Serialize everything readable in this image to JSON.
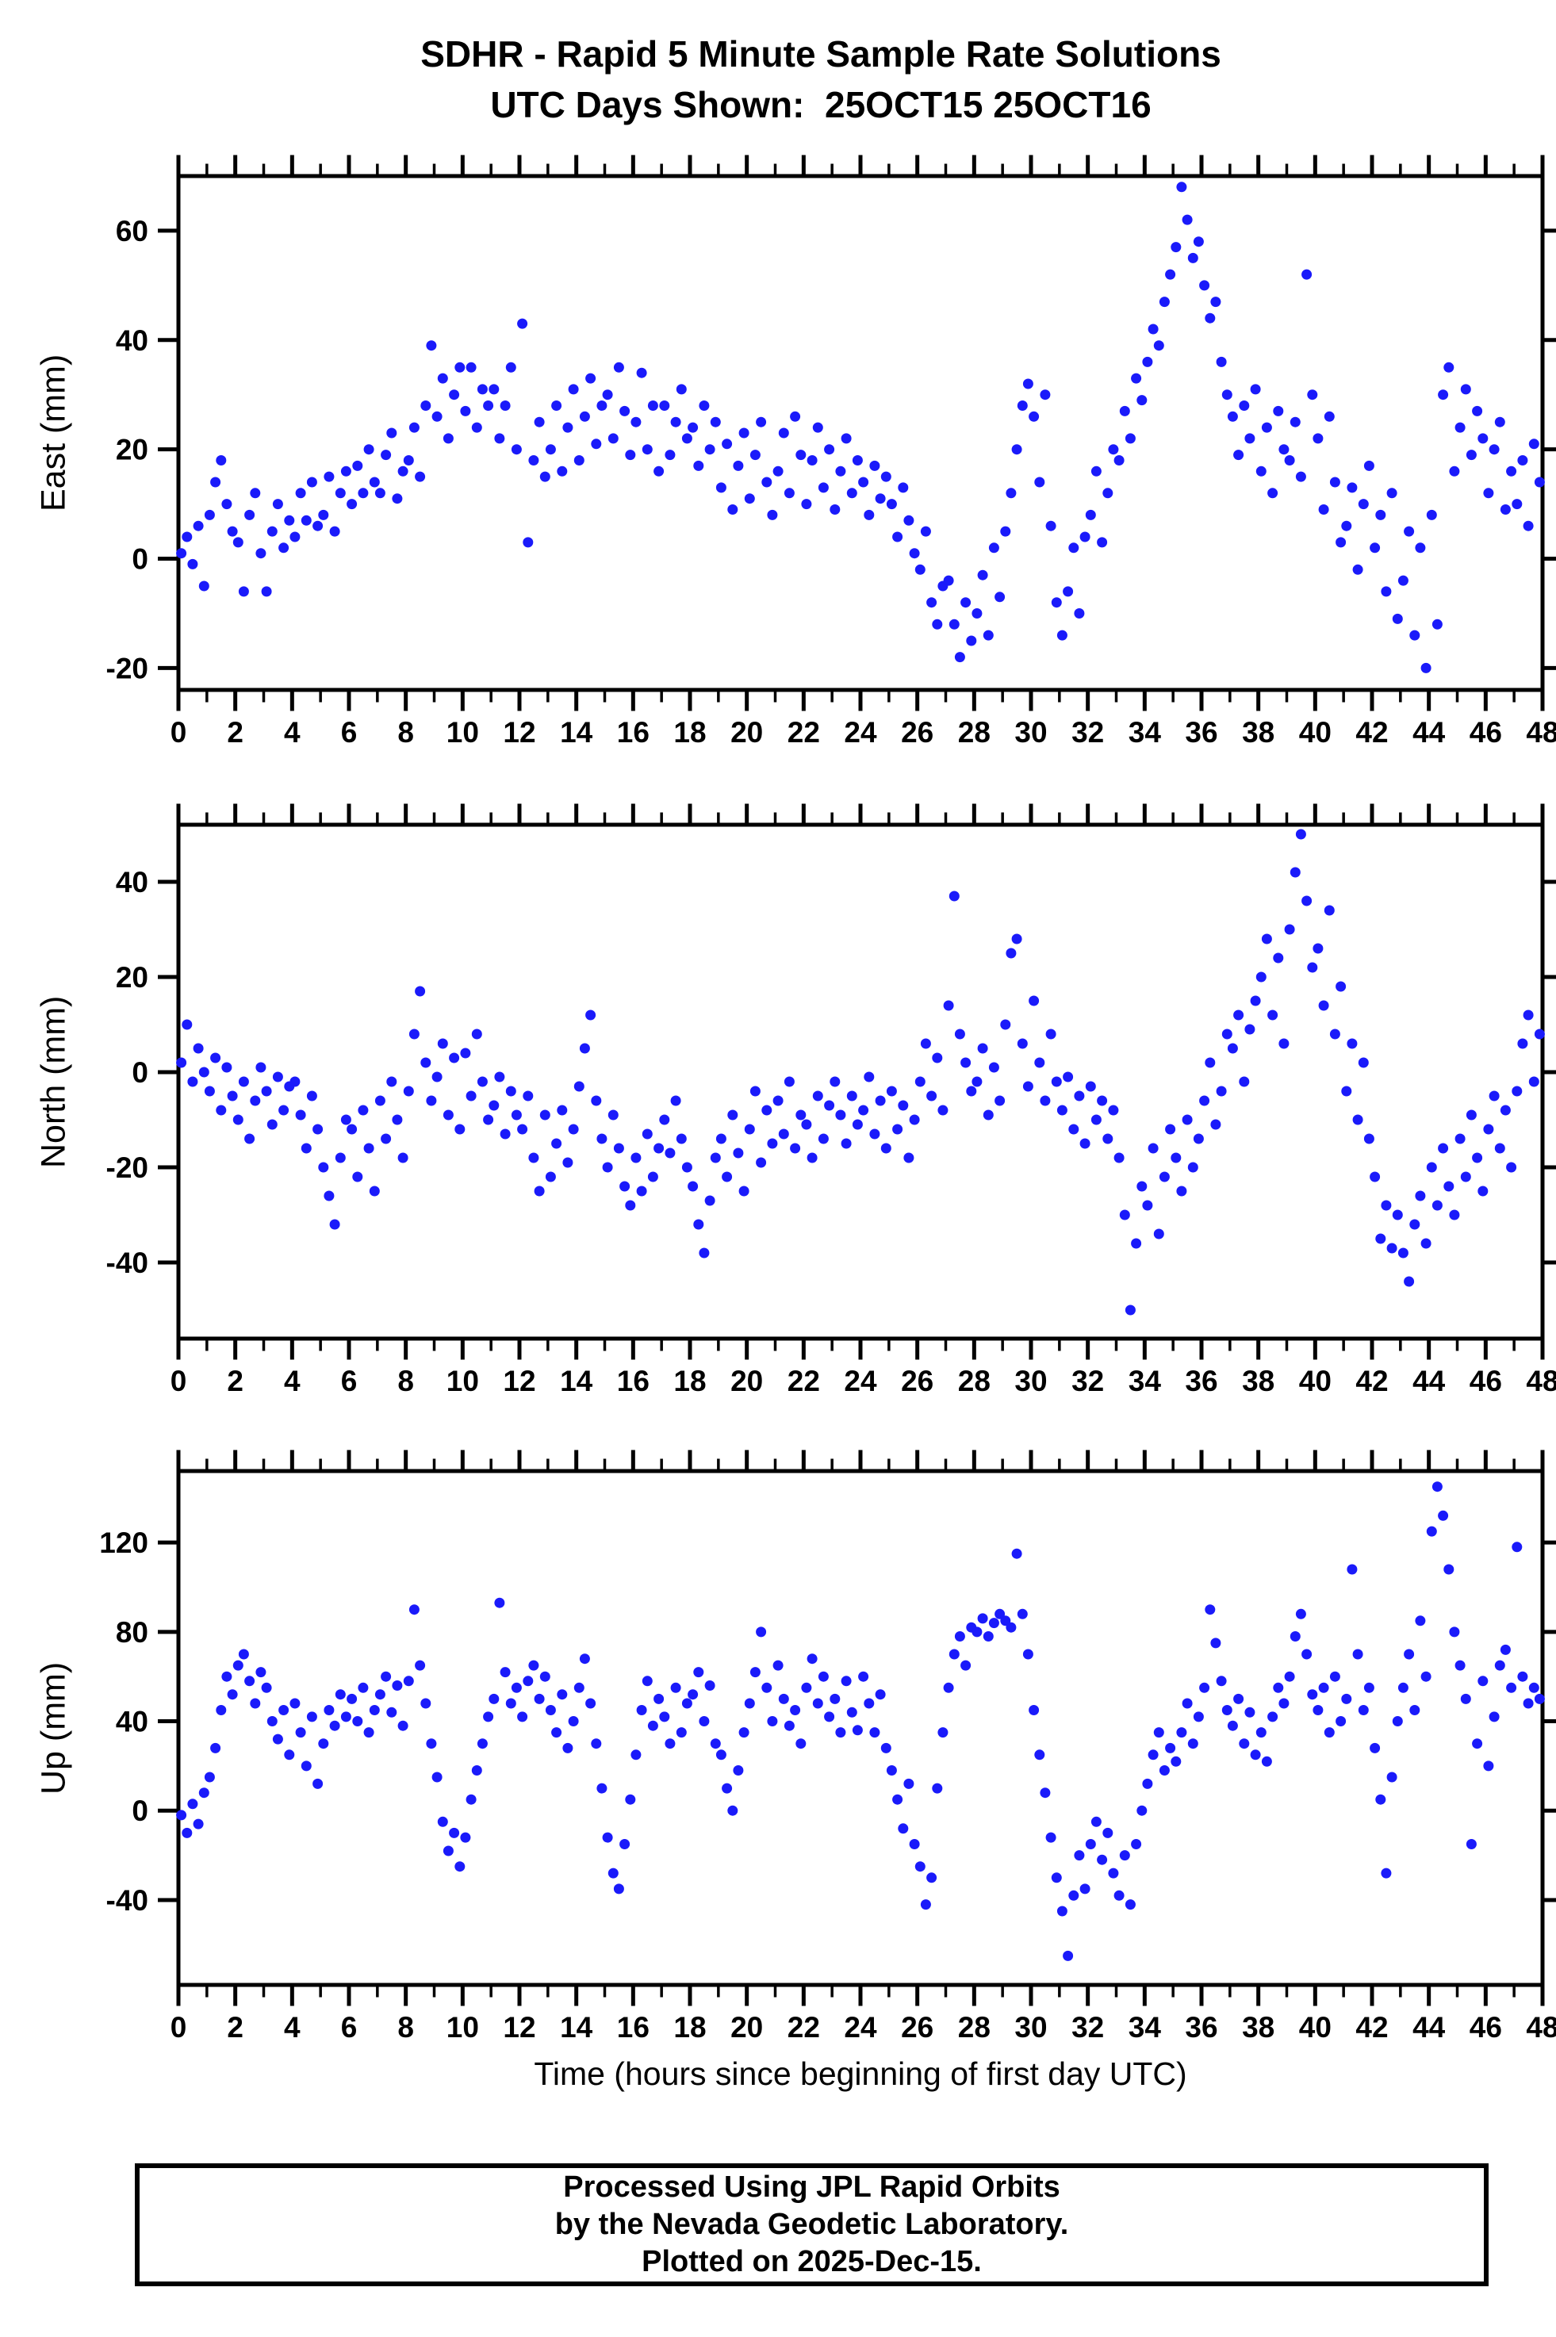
{
  "title": {
    "line1": "SDHR - Rapid 5 Minute Sample Rate Solutions",
    "line2": "UTC Days Shown:  25OCT15 25OCT16"
  },
  "xaxis": {
    "label": "Time (hours since beginning of first day UTC)",
    "xlim": [
      0,
      48
    ],
    "xticks": [
      0,
      2,
      4,
      6,
      8,
      10,
      12,
      14,
      16,
      18,
      20,
      22,
      24,
      26,
      28,
      30,
      32,
      34,
      36,
      38,
      40,
      42,
      44,
      46,
      48
    ],
    "minor_step": 1,
    "grid": false
  },
  "style": {
    "dot_color": "#1a1afa",
    "frame_color": "#000000"
  },
  "footer": {
    "line1": "Processed Using JPL Rapid Orbits",
    "line2": "by the Nevada Geodetic Laboratory.",
    "line3": "Plotted on 2025-Dec-15."
  },
  "chart_data": [
    {
      "type": "scatter",
      "name": "east",
      "ylabel": "East (mm)",
      "yticks": [
        -20,
        0,
        20,
        40,
        60
      ],
      "ylim": [
        -24,
        70
      ],
      "legend": "none",
      "t_start": 0.1,
      "t_step": 0.2,
      "values": [
        1,
        4,
        -1,
        6,
        -5,
        8,
        14,
        18,
        10,
        5,
        3,
        -6,
        8,
        12,
        1,
        -6,
        5,
        10,
        2,
        7,
        4,
        12,
        7,
        14,
        6,
        8,
        15,
        5,
        12,
        16,
        10,
        17,
        12,
        20,
        14,
        12,
        19,
        23,
        11,
        16,
        18,
        24,
        15,
        28,
        39,
        26,
        33,
        22,
        30,
        35,
        27,
        35,
        24,
        31,
        28,
        31,
        22,
        28,
        35,
        20,
        43,
        3,
        18,
        25,
        15,
        20,
        28,
        16,
        24,
        31,
        18,
        26,
        33,
        21,
        28,
        30,
        22,
        35,
        27,
        19,
        25,
        34,
        20,
        28,
        16,
        28,
        19,
        25,
        31,
        22,
        24,
        17,
        28,
        20,
        25,
        13,
        21,
        9,
        17,
        23,
        11,
        19,
        25,
        14,
        8,
        16,
        23,
        12,
        26,
        19,
        10,
        18,
        24,
        13,
        20,
        9,
        16,
        22,
        12,
        18,
        14,
        8,
        17,
        11,
        15,
        10,
        4,
        13,
        7,
        1,
        -2,
        5,
        -8,
        -12,
        -5,
        -4,
        -12,
        -18,
        -8,
        -15,
        -10,
        -3,
        -14,
        2,
        -7,
        5,
        12,
        20,
        28,
        32,
        26,
        14,
        30,
        6,
        -8,
        -14,
        -6,
        2,
        -10,
        4,
        8,
        16,
        3,
        12,
        20,
        18,
        27,
        22,
        33,
        29,
        36,
        42,
        39,
        47,
        52,
        57,
        68,
        62,
        55,
        58,
        50,
        44,
        47,
        36,
        30,
        26,
        19,
        28,
        22,
        31,
        16,
        24,
        12,
        27,
        20,
        18,
        25,
        15,
        52,
        30,
        22,
        9,
        26,
        14,
        3,
        6,
        13,
        -2,
        10,
        17,
        2,
        8,
        -6,
        12,
        -11,
        -4,
        5,
        -14,
        2,
        -20,
        8,
        -12,
        30,
        35,
        16,
        24,
        31,
        19,
        27,
        22,
        12,
        20,
        25,
        9,
        16,
        10,
        18,
        6,
        21,
        14
      ]
    },
    {
      "type": "scatter",
      "name": "north",
      "ylabel": "North (mm)",
      "yticks": [
        -40,
        -20,
        0,
        20,
        40
      ],
      "ylim": [
        -56,
        52
      ],
      "legend": "none",
      "t_start": 0.1,
      "t_step": 0.2,
      "values": [
        2,
        10,
        -2,
        5,
        0,
        -4,
        3,
        -8,
        1,
        -5,
        -10,
        -2,
        -14,
        -6,
        1,
        -4,
        -11,
        -1,
        -8,
        -3,
        -2,
        -9,
        -16,
        -5,
        -12,
        -20,
        -26,
        -32,
        -18,
        -10,
        -12,
        -22,
        -8,
        -16,
        -25,
        -6,
        -14,
        -2,
        -10,
        -18,
        -4,
        8,
        17,
        2,
        -6,
        -1,
        6,
        -9,
        3,
        -12,
        4,
        -5,
        8,
        -2,
        -10,
        -7,
        -1,
        -13,
        -4,
        -9,
        -12,
        -5,
        -18,
        -25,
        -9,
        -22,
        -15,
        -8,
        -19,
        -12,
        -3,
        5,
        12,
        -6,
        -14,
        -20,
        -9,
        -16,
        -24,
        -28,
        -18,
        -25,
        -13,
        -22,
        -16,
        -10,
        -17,
        -6,
        -14,
        -20,
        -24,
        -32,
        -38,
        -27,
        -18,
        -14,
        -22,
        -9,
        -17,
        -25,
        -12,
        -4,
        -19,
        -8,
        -15,
        -6,
        -13,
        -2,
        -16,
        -9,
        -11,
        -18,
        -5,
        -14,
        -7,
        -2,
        -9,
        -15,
        -5,
        -11,
        -8,
        -1,
        -13,
        -6,
        -16,
        -4,
        -12,
        -7,
        -18,
        -10,
        -2,
        6,
        -5,
        3,
        -8,
        14,
        37,
        8,
        2,
        -4,
        -2,
        5,
        -9,
        1,
        -6,
        10,
        25,
        28,
        6,
        -3,
        15,
        2,
        -6,
        8,
        -2,
        -8,
        -1,
        -12,
        -5,
        -15,
        -3,
        -10,
        -6,
        -14,
        -8,
        -18,
        -30,
        -50,
        -36,
        -24,
        -28,
        -16,
        -34,
        -22,
        -12,
        -18,
        -25,
        -10,
        -20,
        -14,
        -6,
        2,
        -11,
        -4,
        8,
        5,
        12,
        -2,
        9,
        15,
        20,
        28,
        12,
        24,
        6,
        30,
        42,
        50,
        36,
        22,
        26,
        14,
        34,
        8,
        18,
        -4,
        6,
        -10,
        2,
        -14,
        -22,
        -35,
        -28,
        -37,
        -30,
        -38,
        -44,
        -32,
        -26,
        -36,
        -20,
        -28,
        -16,
        -24,
        -30,
        -14,
        -22,
        -9,
        -18,
        -25,
        -12,
        -5,
        -16,
        -8,
        -20,
        -4,
        6,
        12,
        -2,
        8
      ]
    },
    {
      "type": "scatter",
      "name": "up",
      "ylabel": "Up (mm)",
      "yticks": [
        -40,
        0,
        40,
        80,
        120
      ],
      "ylim": [
        -78,
        152
      ],
      "legend": "none",
      "t_start": 0.1,
      "t_step": 0.2,
      "values": [
        -2,
        -10,
        3,
        -6,
        8,
        15,
        28,
        45,
        60,
        52,
        65,
        70,
        58,
        48,
        62,
        55,
        40,
        32,
        45,
        25,
        48,
        35,
        20,
        42,
        12,
        30,
        45,
        38,
        52,
        42,
        50,
        40,
        55,
        35,
        45,
        52,
        60,
        44,
        56,
        38,
        58,
        90,
        65,
        48,
        30,
        15,
        -5,
        -18,
        -10,
        -25,
        -12,
        5,
        18,
        30,
        42,
        50,
        93,
        62,
        48,
        55,
        42,
        58,
        65,
        50,
        60,
        45,
        35,
        52,
        28,
        40,
        55,
        68,
        48,
        30,
        10,
        -12,
        -28,
        -35,
        -15,
        5,
        25,
        45,
        58,
        38,
        50,
        42,
        30,
        55,
        35,
        48,
        52,
        62,
        40,
        56,
        30,
        25,
        10,
        0,
        18,
        35,
        48,
        62,
        80,
        55,
        40,
        65,
        50,
        38,
        45,
        30,
        55,
        68,
        48,
        60,
        42,
        50,
        35,
        58,
        44,
        36,
        60,
        48,
        35,
        52,
        28,
        18,
        5,
        -8,
        12,
        -15,
        -25,
        -42,
        -30,
        10,
        35,
        55,
        70,
        78,
        65,
        82,
        80,
        86,
        78,
        84,
        88,
        85,
        82,
        115,
        88,
        70,
        45,
        25,
        8,
        -12,
        -30,
        -45,
        -65,
        -38,
        -20,
        -35,
        -15,
        -5,
        -22,
        -10,
        -28,
        -38,
        -20,
        -42,
        -15,
        0,
        12,
        25,
        35,
        18,
        28,
        22,
        35,
        48,
        30,
        42,
        55,
        90,
        75,
        58,
        45,
        38,
        50,
        30,
        44,
        25,
        35,
        22,
        42,
        55,
        48,
        60,
        78,
        88,
        70,
        52,
        45,
        55,
        35,
        60,
        40,
        50,
        108,
        70,
        45,
        55,
        28,
        5,
        -28,
        15,
        40,
        55,
        70,
        45,
        85,
        60,
        125,
        145,
        132,
        108,
        80,
        65,
        50,
        -15,
        30,
        58,
        20,
        42,
        65,
        72,
        55,
        118,
        60,
        48,
        55,
        50
      ]
    }
  ]
}
